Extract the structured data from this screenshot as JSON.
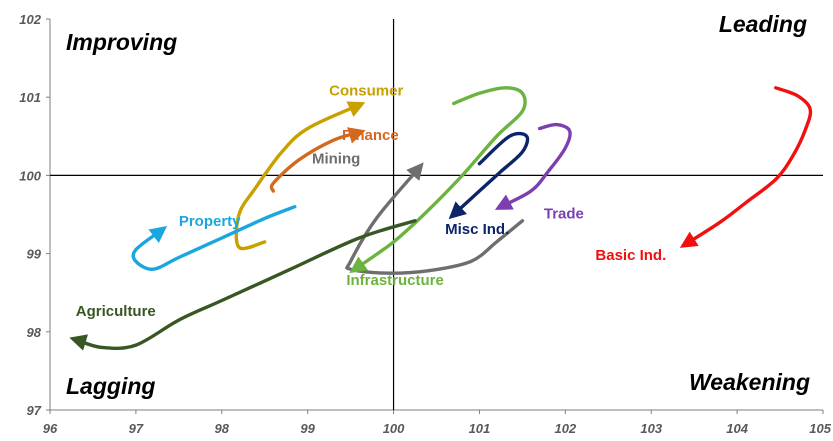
{
  "chart_data": {
    "type": "line",
    "title": "",
    "xlabel": "",
    "ylabel": "",
    "xlim": [
      96,
      105
    ],
    "ylim": [
      97,
      102
    ],
    "center": [
      100,
      100
    ],
    "grid": false,
    "x_ticks": [
      "96",
      "97",
      "98",
      "99",
      "100",
      "101",
      "102",
      "103",
      "104",
      "105"
    ],
    "y_ticks": [
      "97",
      "98",
      "99",
      "100",
      "101",
      "102"
    ],
    "quadrants": {
      "top_left": "Improving",
      "top_right": "Leading",
      "bottom_left": "Lagging",
      "bottom_right": "Weakening"
    },
    "series": [
      {
        "name": "Consumer",
        "color": "#C8A000",
        "points": [
          [
            98.5,
            99.15
          ],
          [
            98.2,
            99.08
          ],
          [
            98.2,
            99.5
          ],
          [
            98.4,
            99.85
          ],
          [
            98.7,
            100.3
          ],
          [
            99.0,
            100.6
          ],
          [
            99.6,
            100.9
          ]
        ]
      },
      {
        "name": "Finance",
        "color": "#D2691E",
        "points": [
          [
            98.6,
            99.8
          ],
          [
            98.6,
            99.9
          ],
          [
            98.9,
            100.2
          ],
          [
            99.3,
            100.45
          ],
          [
            99.6,
            100.55
          ]
        ]
      },
      {
        "name": "Mining",
        "color": "#6E6E6E",
        "points": [
          [
            101.5,
            99.42
          ],
          [
            101.2,
            99.15
          ],
          [
            100.9,
            98.9
          ],
          [
            100.4,
            98.78
          ],
          [
            99.9,
            98.75
          ],
          [
            99.5,
            98.8
          ],
          [
            99.5,
            98.9
          ],
          [
            99.8,
            99.45
          ],
          [
            100.3,
            100.1
          ]
        ]
      },
      {
        "name": "Property",
        "color": "#1AA7DE",
        "points": [
          [
            98.85,
            99.6
          ],
          [
            98.5,
            99.45
          ],
          [
            98.0,
            99.2
          ],
          [
            97.5,
            98.95
          ],
          [
            97.2,
            98.8
          ],
          [
            97.0,
            98.9
          ],
          [
            97.0,
            99.05
          ],
          [
            97.3,
            99.3
          ]
        ]
      },
      {
        "name": "Infrastructure",
        "color": "#6CB33F",
        "points": [
          [
            100.7,
            100.92
          ],
          [
            101.0,
            101.05
          ],
          [
            101.3,
            101.12
          ],
          [
            101.5,
            101.05
          ],
          [
            101.5,
            100.82
          ],
          [
            101.2,
            100.5
          ],
          [
            100.8,
            100.0
          ],
          [
            100.4,
            99.55
          ],
          [
            100.0,
            99.15
          ],
          [
            99.55,
            98.8
          ]
        ]
      },
      {
        "name": "Agriculture",
        "color": "#385723",
        "points": [
          [
            100.25,
            99.42
          ],
          [
            99.6,
            99.2
          ],
          [
            98.8,
            98.8
          ],
          [
            98.0,
            98.4
          ],
          [
            97.5,
            98.15
          ],
          [
            97.0,
            97.83
          ],
          [
            96.6,
            97.8
          ],
          [
            96.3,
            97.9
          ]
        ]
      },
      {
        "name": "Trade",
        "color": "#7B3FB0",
        "points": [
          [
            101.7,
            100.6
          ],
          [
            101.9,
            100.65
          ],
          [
            102.05,
            100.57
          ],
          [
            102.0,
            100.35
          ],
          [
            101.8,
            100.05
          ],
          [
            101.6,
            99.8
          ],
          [
            101.25,
            99.6
          ]
        ]
      },
      {
        "name": "Misc Ind.",
        "color": "#0C2468",
        "points": [
          [
            101.0,
            100.15
          ],
          [
            101.35,
            100.5
          ],
          [
            101.55,
            100.5
          ],
          [
            101.5,
            100.3
          ],
          [
            101.25,
            100.05
          ],
          [
            101.0,
            99.8
          ],
          [
            100.7,
            99.5
          ]
        ]
      },
      {
        "name": "Basic Ind.",
        "color": "#F01010",
        "points": [
          [
            104.45,
            101.12
          ],
          [
            104.7,
            101.02
          ],
          [
            104.85,
            100.85
          ],
          [
            104.8,
            100.6
          ],
          [
            104.65,
            100.25
          ],
          [
            104.45,
            99.95
          ],
          [
            104.1,
            99.65
          ],
          [
            103.8,
            99.4
          ],
          [
            103.4,
            99.12
          ]
        ]
      }
    ],
    "labels": [
      {
        "series": "Consumer",
        "text": "Consumer",
        "x": 99.25,
        "y": 101.02
      },
      {
        "series": "Finance",
        "text": "Finance",
        "x": 99.4,
        "y": 100.45
      },
      {
        "series": "Mining",
        "text": "Mining",
        "x": 99.05,
        "y": 100.15
      },
      {
        "series": "Property",
        "text": "Property",
        "x": 97.5,
        "y": 99.35
      },
      {
        "series": "Infrastructure",
        "text": "Infrastructure",
        "x": 99.45,
        "y": 98.6
      },
      {
        "series": "Agriculture",
        "text": "Agriculture",
        "x": 96.3,
        "y": 98.2
      },
      {
        "series": "Trade",
        "text": "Trade",
        "x": 101.75,
        "y": 99.45
      },
      {
        "series": "Misc Ind.",
        "text": "Misc Ind.",
        "x": 100.6,
        "y": 99.25
      },
      {
        "series": "Basic Ind.",
        "text": "Basic Ind.",
        "x": 102.35,
        "y": 98.92
      }
    ]
  }
}
